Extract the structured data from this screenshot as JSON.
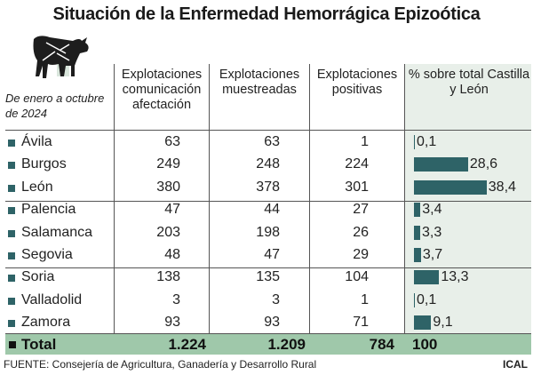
{
  "title": "Situación de la Enfermedad Hemorrágica Epizoótica",
  "note": "De enero a octubre de 2024",
  "colors": {
    "bar": "#2e6367",
    "highlight_column": "#e8efe9",
    "total_row": "#9fc8aa"
  },
  "icon": "cow-with-midge-icon",
  "chart_data": {
    "type": "table",
    "columns": [
      "Explotaciones comunicación afectación",
      "Explotaciones muestreadas",
      "Explotaciones positivas",
      "% sobre total Castilla y León"
    ],
    "rows": [
      {
        "province": "Ávila",
        "comunicacion": "63",
        "muestreadas": "63",
        "positivas": "1",
        "pct": 0.1,
        "pct_label": "0,1"
      },
      {
        "province": "Burgos",
        "comunicacion": "249",
        "muestreadas": "248",
        "positivas": "224",
        "pct": 28.6,
        "pct_label": "28,6"
      },
      {
        "province": "León",
        "comunicacion": "380",
        "muestreadas": "378",
        "positivas": "301",
        "pct": 38.4,
        "pct_label": "38,4"
      },
      {
        "province": "Palencia",
        "comunicacion": "47",
        "muestreadas": "44",
        "positivas": "27",
        "pct": 3.4,
        "pct_label": "3,4"
      },
      {
        "province": "Salamanca",
        "comunicacion": "203",
        "muestreadas": "198",
        "positivas": "26",
        "pct": 3.3,
        "pct_label": "3,3"
      },
      {
        "province": "Segovia",
        "comunicacion": "48",
        "muestreadas": "47",
        "positivas": "29",
        "pct": 3.7,
        "pct_label": "3,7"
      },
      {
        "province": "Soria",
        "comunicacion": "138",
        "muestreadas": "135",
        "positivas": "104",
        "pct": 13.3,
        "pct_label": "13,3"
      },
      {
        "province": "Valladolid",
        "comunicacion": "3",
        "muestreadas": "3",
        "positivas": "1",
        "pct": 0.1,
        "pct_label": "0,1"
      },
      {
        "province": "Zamora",
        "comunicacion": "93",
        "muestreadas": "93",
        "positivas": "71",
        "pct": 9.1,
        "pct_label": "9,1"
      }
    ],
    "total": {
      "label": "Total",
      "comunicacion": "1.224",
      "muestreadas": "1.209",
      "positivas": "784",
      "pct": "100"
    }
  },
  "footer": {
    "source": "FUENTE: Consejería de Agricultura, Ganadería y Desarrollo Rural",
    "credit": "ICAL"
  }
}
